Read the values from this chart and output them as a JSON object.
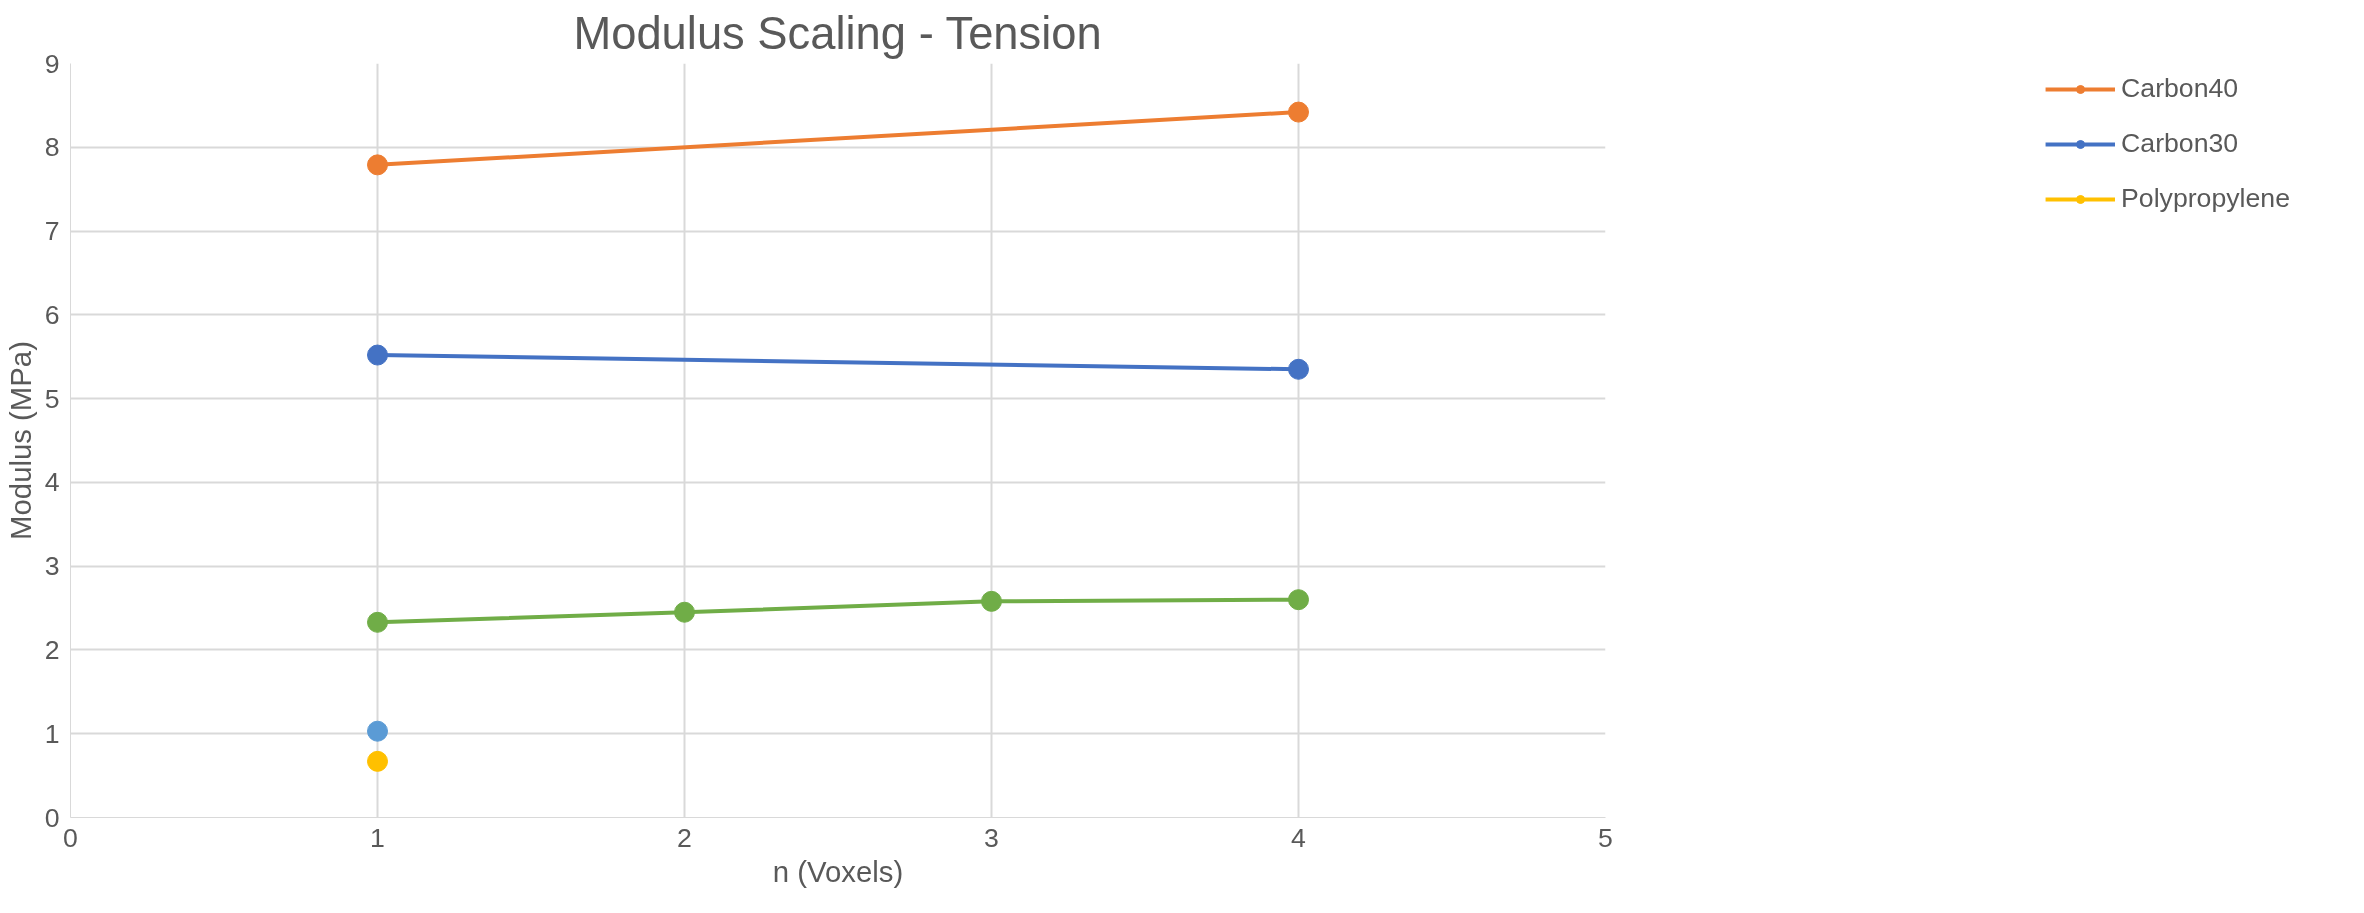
{
  "chart_data": {
    "type": "line",
    "title": "Modulus Scaling - Tension",
    "xlabel": "n (Voxels)",
    "ylabel": "Modulus (MPa)",
    "xlim": [
      0,
      5
    ],
    "xticks": [
      0,
      1,
      2,
      3,
      4,
      5
    ],
    "ylim": [
      0,
      9
    ],
    "yticks": [
      0,
      1,
      2,
      3,
      4,
      5,
      6,
      7,
      8,
      9
    ],
    "grid": true,
    "legend": "right",
    "marker": "circle",
    "line_style": "solid",
    "series": [
      {
        "name": "Carbon40",
        "color": "#ed7d31",
        "x": [
          1,
          4
        ],
        "values": [
          7.79,
          8.42
        ]
      },
      {
        "name": "Carbon30",
        "color": "#4472c4",
        "x": [
          1,
          4
        ],
        "values": [
          5.52,
          5.35
        ]
      },
      {
        "color": "#70ad47",
        "x": [
          1,
          2,
          3,
          4
        ],
        "values": [
          2.33,
          2.45,
          2.58,
          2.6
        ]
      },
      {
        "color": "#5b9bd5",
        "x": [
          1
        ],
        "values": [
          1.03
        ]
      },
      {
        "name": "Polypropylene",
        "color": "#ffc000",
        "x": [
          1
        ],
        "values": [
          0.67
        ]
      }
    ]
  }
}
